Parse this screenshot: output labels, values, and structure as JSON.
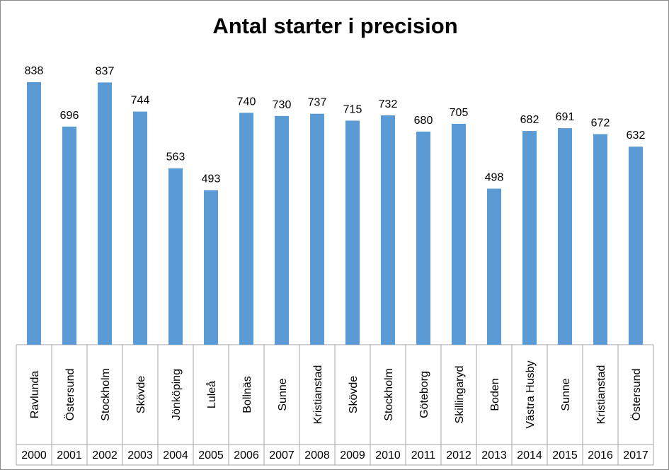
{
  "chart_data": {
    "type": "bar",
    "title": "Antal starter i precision",
    "categories": [
      {
        "place": "Ravlunda",
        "year": "2000"
      },
      {
        "place": "Östersund",
        "year": "2001"
      },
      {
        "place": "Stockholm",
        "year": "2002"
      },
      {
        "place": "Skövde",
        "year": "2003"
      },
      {
        "place": "Jönköping",
        "year": "2004"
      },
      {
        "place": "Luleå",
        "year": "2005"
      },
      {
        "place": "Bollnäs",
        "year": "2006"
      },
      {
        "place": "Sunne",
        "year": "2007"
      },
      {
        "place": "Kristianstad",
        "year": "2008"
      },
      {
        "place": "Skövde",
        "year": "2009"
      },
      {
        "place": "Stockholm",
        "year": "2010"
      },
      {
        "place": "Göteborg",
        "year": "2011"
      },
      {
        "place": "Skillingaryd",
        "year": "2012"
      },
      {
        "place": "Boden",
        "year": "2013"
      },
      {
        "place": "Västra Husby",
        "year": "2014"
      },
      {
        "place": "Sunne",
        "year": "2015"
      },
      {
        "place": "Kristianstad",
        "year": "2016"
      },
      {
        "place": "Östersund",
        "year": "2017"
      }
    ],
    "values": [
      838,
      696,
      837,
      744,
      563,
      493,
      740,
      730,
      737,
      715,
      732,
      680,
      705,
      498,
      682,
      691,
      672,
      632
    ],
    "ylim": [
      0,
      900
    ],
    "bar_color": "#5b9bd5",
    "grid": false,
    "legend": "none",
    "data_labels": true
  }
}
